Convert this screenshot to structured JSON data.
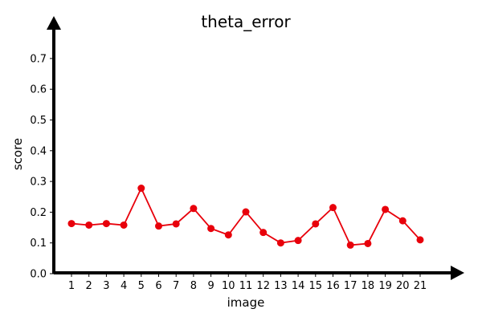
{
  "chart_data": {
    "type": "line",
    "title": "theta_error",
    "xlabel": "image",
    "ylabel": "score",
    "ylim": [
      0,
      0.8
    ],
    "yticks": [
      "0.0",
      "0.1",
      "0.2",
      "0.3",
      "0.4",
      "0.5",
      "0.6",
      "0.7"
    ],
    "categories": [
      "1",
      "2",
      "3",
      "4",
      "5",
      "6",
      "7",
      "8",
      "9",
      "10",
      "11",
      "12",
      "13",
      "14",
      "15",
      "16",
      "17",
      "18",
      "19",
      "20",
      "21"
    ],
    "series": [
      {
        "values": [
          0.163,
          0.158,
          0.163,
          0.158,
          0.278,
          0.155,
          0.162,
          0.212,
          0.147,
          0.126,
          0.201,
          0.134,
          0.1,
          0.108,
          0.162,
          0.215,
          0.093,
          0.098,
          0.209,
          0.172,
          0.11
        ],
        "color": "#e8000b",
        "marker": "circle"
      }
    ],
    "grid": false,
    "axis_style": "arrows"
  }
}
